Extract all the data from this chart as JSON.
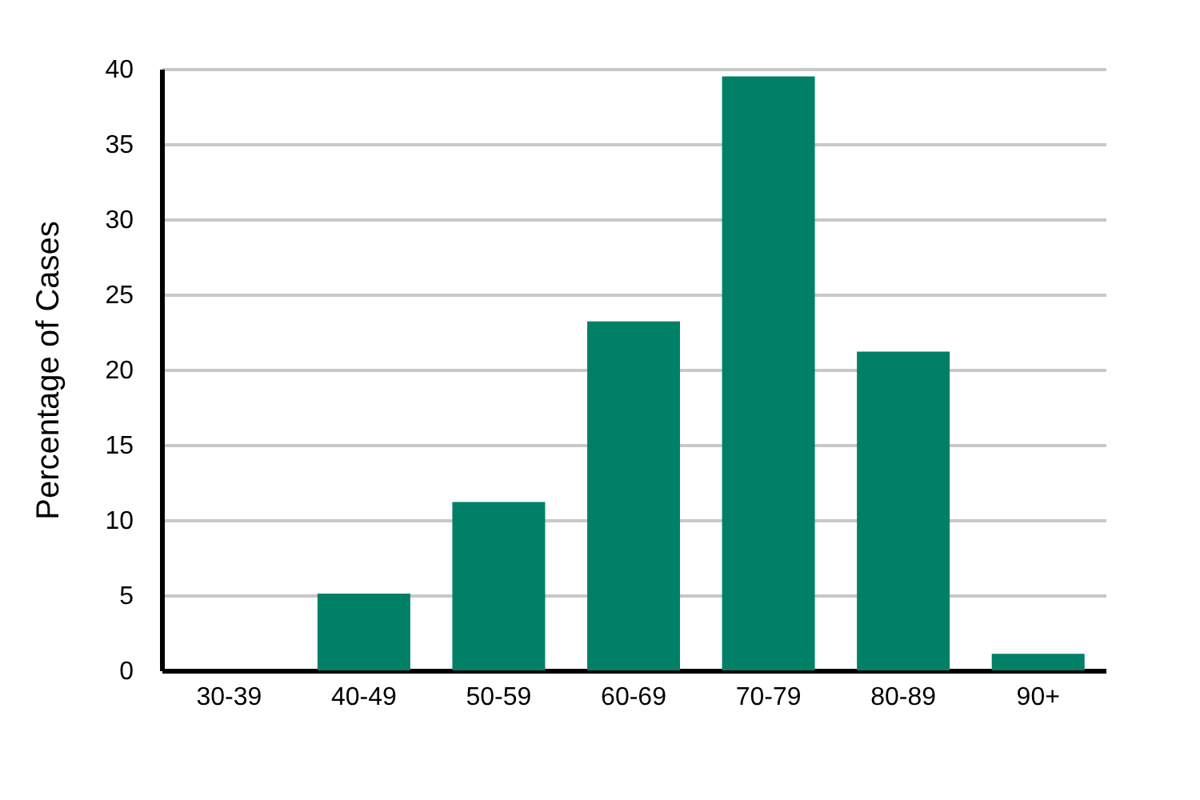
{
  "chart_data": {
    "type": "bar",
    "ylabel": "Percentage of Cases",
    "categories": [
      "30-39",
      "40-49",
      "50-59",
      "60-69",
      "70-79",
      "80-89",
      "90+"
    ],
    "values": [
      0,
      5.1,
      11.2,
      23.2,
      39.5,
      21.2,
      1.1
    ],
    "color": "#008066",
    "ylim": [
      0,
      40
    ],
    "yticks": [
      0,
      5,
      10,
      15,
      20,
      25,
      30,
      35,
      40
    ],
    "grid": "y"
  }
}
